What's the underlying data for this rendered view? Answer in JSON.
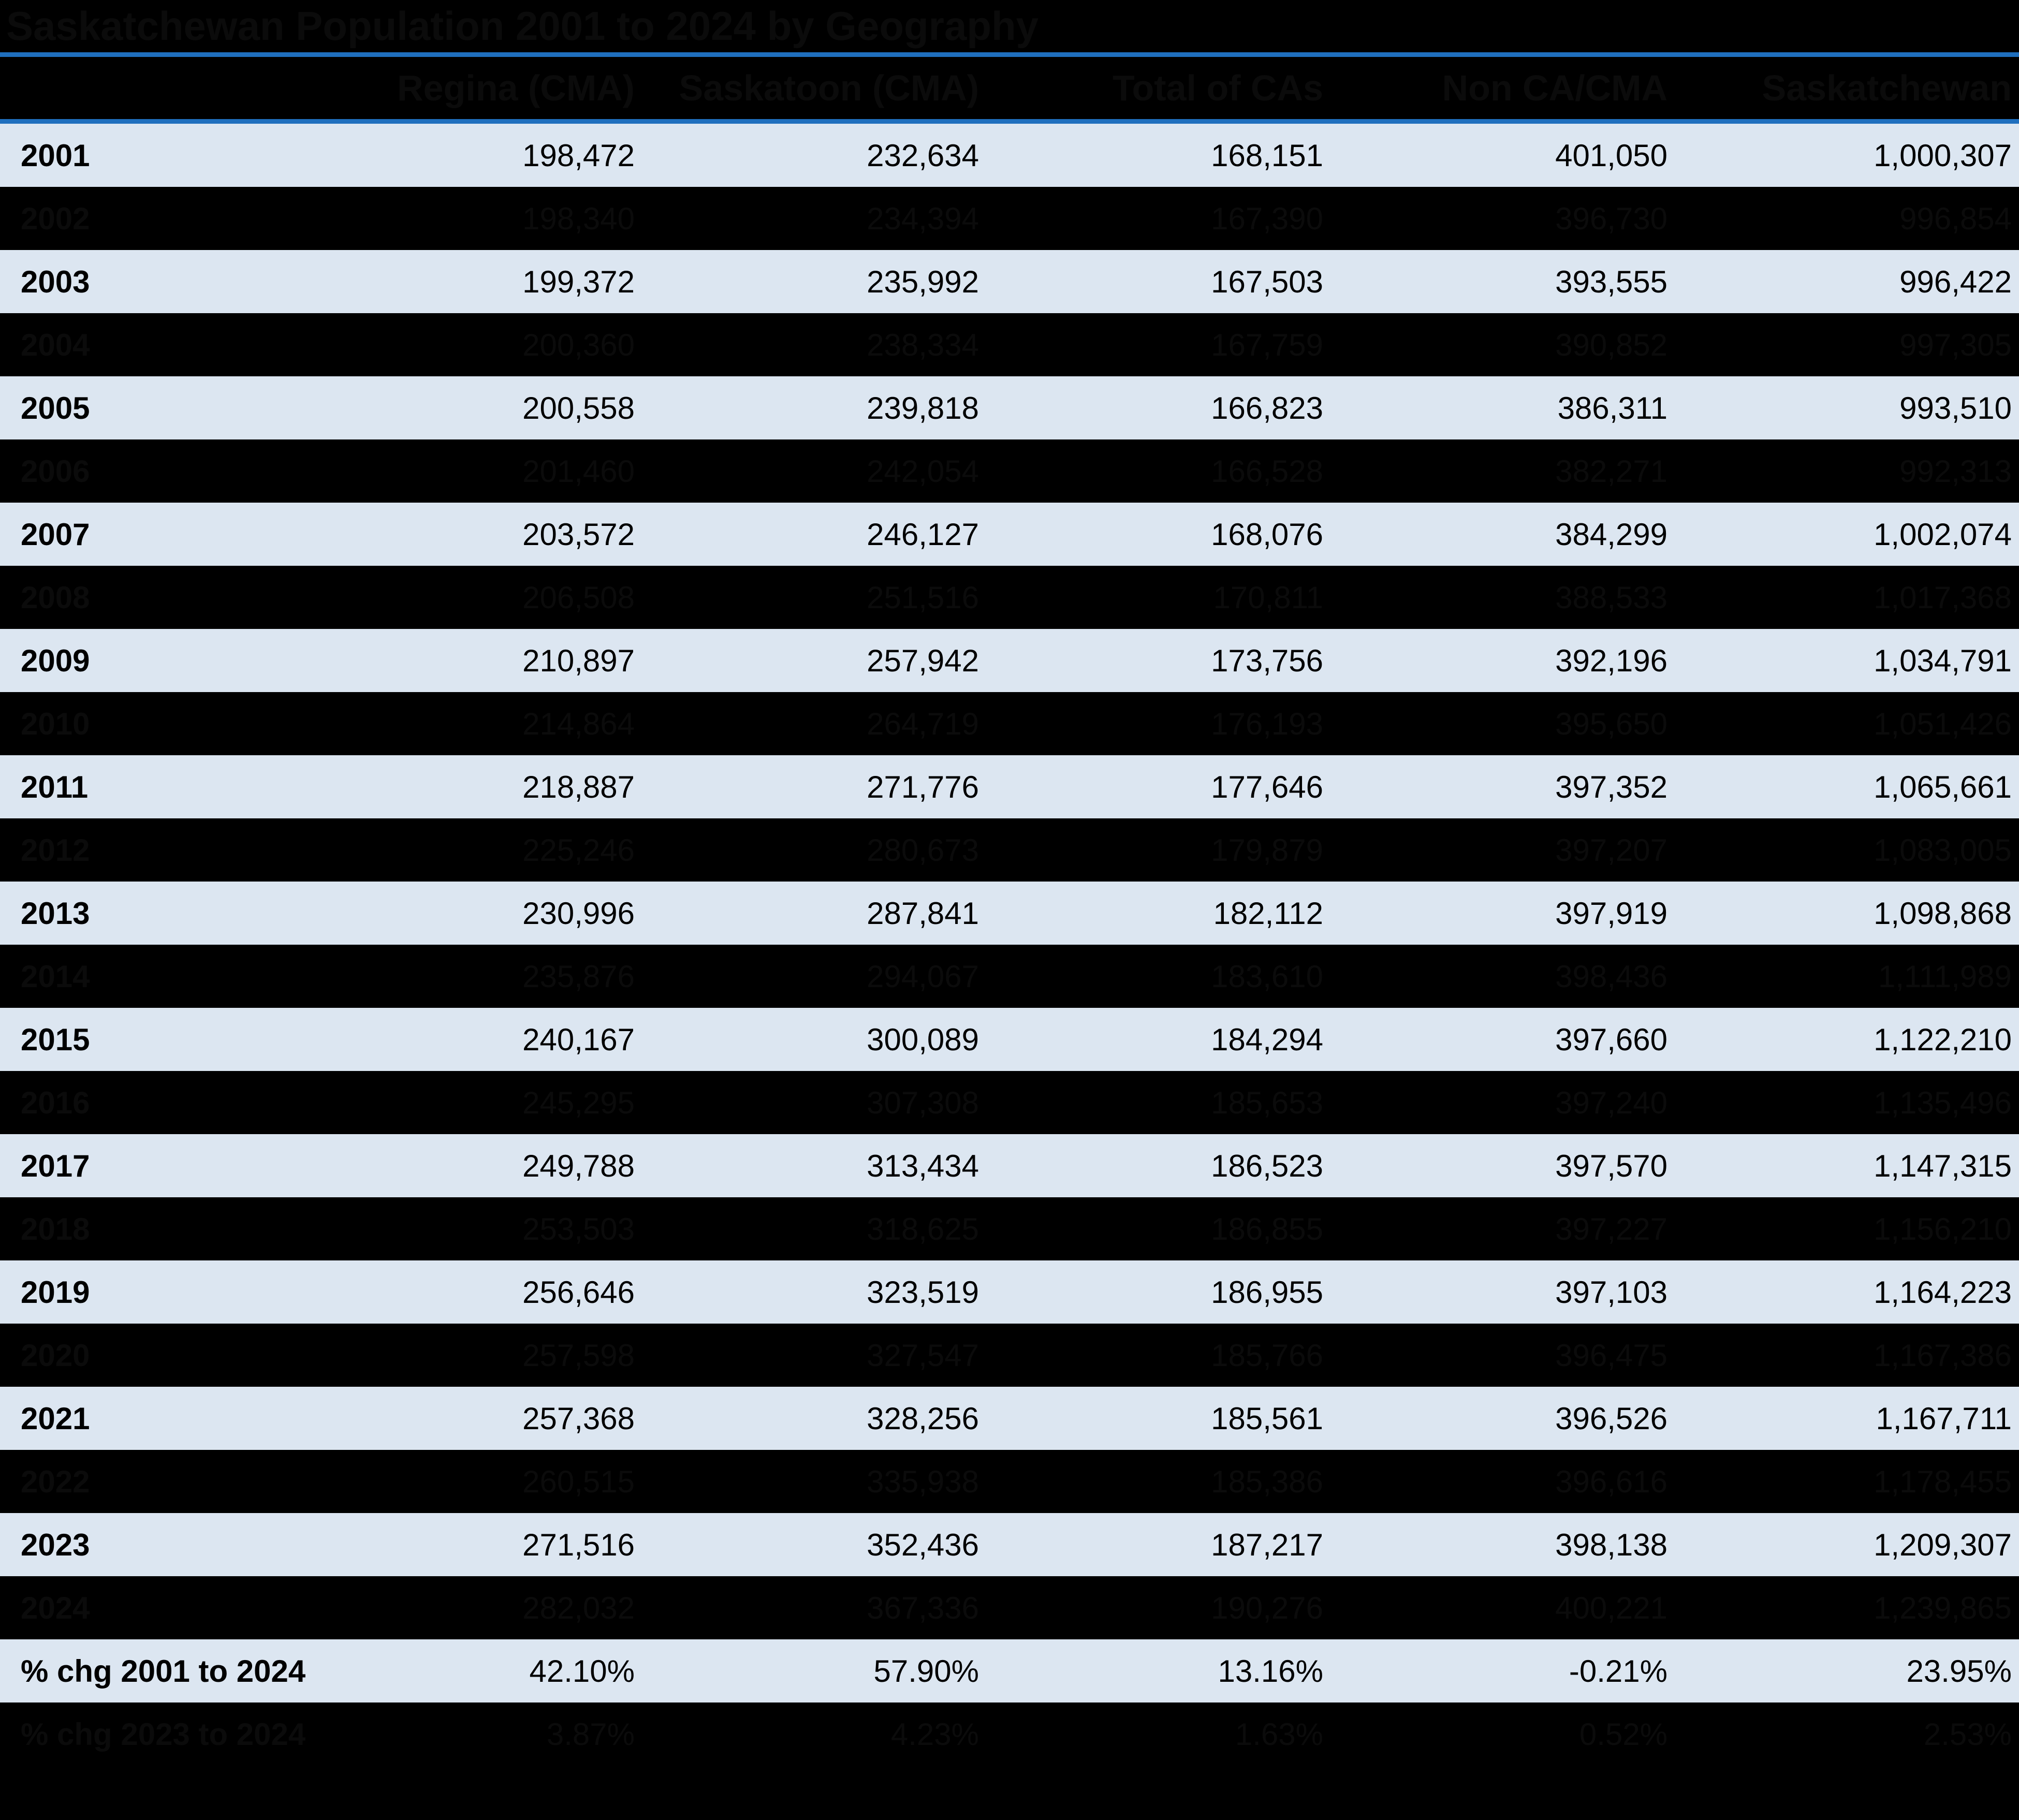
{
  "title": "Saskatchewan Population 2001 to 2024 by Geography",
  "chart_data": {
    "type": "table",
    "title": "Saskatchewan Population 2001 to 2024 by Geography",
    "columns": [
      "",
      "Regina (CMA)",
      "Saskatoon (CMA)",
      "Total of CAs",
      "Non CA/CMA",
      "Saskatchewan"
    ],
    "rows": [
      {
        "label": "2001",
        "values": [
          "198,472",
          "232,634",
          "168,151",
          "401,050",
          "1,000,307"
        ],
        "hidden": false
      },
      {
        "label": "2002",
        "values": [
          "198,340",
          "234,394",
          "167,390",
          "396,730",
          "996,854"
        ],
        "hidden": true
      },
      {
        "label": "2003",
        "values": [
          "199,372",
          "235,992",
          "167,503",
          "393,555",
          "996,422"
        ],
        "hidden": false
      },
      {
        "label": "2004",
        "values": [
          "200,360",
          "238,334",
          "167,759",
          "390,852",
          "997,305"
        ],
        "hidden": true
      },
      {
        "label": "2005",
        "values": [
          "200,558",
          "239,818",
          "166,823",
          "386,311",
          "993,510"
        ],
        "hidden": false
      },
      {
        "label": "2006",
        "values": [
          "201,460",
          "242,054",
          "166,528",
          "382,271",
          "992,313"
        ],
        "hidden": true
      },
      {
        "label": "2007",
        "values": [
          "203,572",
          "246,127",
          "168,076",
          "384,299",
          "1,002,074"
        ],
        "hidden": false
      },
      {
        "label": "2008",
        "values": [
          "206,508",
          "251,516",
          "170,811",
          "388,533",
          "1,017,368"
        ],
        "hidden": true
      },
      {
        "label": "2009",
        "values": [
          "210,897",
          "257,942",
          "173,756",
          "392,196",
          "1,034,791"
        ],
        "hidden": false
      },
      {
        "label": "2010",
        "values": [
          "214,864",
          "264,719",
          "176,193",
          "395,650",
          "1,051,426"
        ],
        "hidden": true
      },
      {
        "label": "2011",
        "values": [
          "218,887",
          "271,776",
          "177,646",
          "397,352",
          "1,065,661"
        ],
        "hidden": false
      },
      {
        "label": "2012",
        "values": [
          "225,246",
          "280,673",
          "179,879",
          "397,207",
          "1,083,005"
        ],
        "hidden": true
      },
      {
        "label": "2013",
        "values": [
          "230,996",
          "287,841",
          "182,112",
          "397,919",
          "1,098,868"
        ],
        "hidden": false
      },
      {
        "label": "2014",
        "values": [
          "235,876",
          "294,067",
          "183,610",
          "398,436",
          "1,111,989"
        ],
        "hidden": true
      },
      {
        "label": "2015",
        "values": [
          "240,167",
          "300,089",
          "184,294",
          "397,660",
          "1,122,210"
        ],
        "hidden": false
      },
      {
        "label": "2016",
        "values": [
          "245,295",
          "307,308",
          "185,653",
          "397,240",
          "1,135,496"
        ],
        "hidden": true
      },
      {
        "label": "2017",
        "values": [
          "249,788",
          "313,434",
          "186,523",
          "397,570",
          "1,147,315"
        ],
        "hidden": false
      },
      {
        "label": "2018",
        "values": [
          "253,503",
          "318,625",
          "186,855",
          "397,227",
          "1,156,210"
        ],
        "hidden": true
      },
      {
        "label": "2019",
        "values": [
          "256,646",
          "323,519",
          "186,955",
          "397,103",
          "1,164,223"
        ],
        "hidden": false
      },
      {
        "label": "2020",
        "values": [
          "257,598",
          "327,547",
          "185,766",
          "396,475",
          "1,167,386"
        ],
        "hidden": true
      },
      {
        "label": "2021",
        "values": [
          "257,368",
          "328,256",
          "185,561",
          "396,526",
          "1,167,711"
        ],
        "hidden": false
      },
      {
        "label": "2022",
        "values": [
          "260,515",
          "335,938",
          "185,386",
          "396,616",
          "1,178,455"
        ],
        "hidden": true
      },
      {
        "label": "2023",
        "values": [
          "271,516",
          "352,436",
          "187,217",
          "398,138",
          "1,209,307"
        ],
        "hidden": false
      },
      {
        "label": "2024",
        "values": [
          "282,032",
          "367,336",
          "190,276",
          "400,221",
          "1,239,865"
        ],
        "hidden": true
      },
      {
        "label": "% chg 2001 to 2024",
        "values": [
          "42.10%",
          "57.90%",
          "13.16%",
          "-0.21%",
          "23.95%"
        ],
        "hidden": false
      },
      {
        "label": "% chg 2023 to 2024",
        "values": [
          "3.87%",
          "4.23%",
          "1.63%",
          "0.52%",
          "2.53%"
        ],
        "hidden": true
      }
    ],
    "layout": {
      "row_style_light_visible": true,
      "row_style_dark_hidden_text": true,
      "value_alignment": "right",
      "header_alignment": "right"
    }
  },
  "colors": {
    "accent_blue": "#1F6FBE",
    "page_bg": "#000000",
    "row_light_bg": "#DCE6F1",
    "row_dark_bg": "#000000",
    "visible_text": "#000000",
    "hidden_text": "#0B0B0B"
  }
}
